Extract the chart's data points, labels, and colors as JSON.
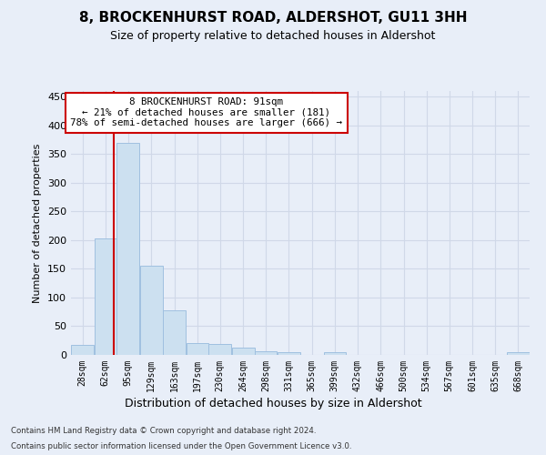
{
  "title": "8, BROCKENHURST ROAD, ALDERSHOT, GU11 3HH",
  "subtitle": "Size of property relative to detached houses in Aldershot",
  "xlabel": "Distribution of detached houses by size in Aldershot",
  "ylabel": "Number of detached properties",
  "footer_line1": "Contains HM Land Registry data © Crown copyright and database right 2024.",
  "footer_line2": "Contains public sector information licensed under the Open Government Licence v3.0.",
  "annotation_title": "8 BROCKENHURST ROAD: 91sqm",
  "annotation_line2": "← 21% of detached houses are smaller (181)",
  "annotation_line3": "78% of semi-detached houses are larger (666) →",
  "property_size": 91,
  "bin_edges": [
    28,
    62,
    95,
    129,
    163,
    197,
    230,
    264,
    298,
    331,
    365,
    399,
    432,
    466,
    500,
    534,
    567,
    601,
    635,
    668,
    702
  ],
  "bar_values": [
    17,
    203,
    370,
    155,
    77,
    20,
    19,
    13,
    6,
    5,
    0,
    5,
    0,
    0,
    0,
    0,
    0,
    0,
    0,
    5
  ],
  "bar_color": "#cce0f0",
  "bar_edge_color": "#a0c0e0",
  "vline_color": "#cc0000",
  "vline_x": 91,
  "annotation_box_color": "#ffffff",
  "annotation_box_edge": "#cc0000",
  "grid_color": "#d0d8e8",
  "background_color": "#e8eef8",
  "ylim": [
    0,
    460
  ],
  "yticks": [
    0,
    50,
    100,
    150,
    200,
    250,
    300,
    350,
    400,
    450
  ]
}
